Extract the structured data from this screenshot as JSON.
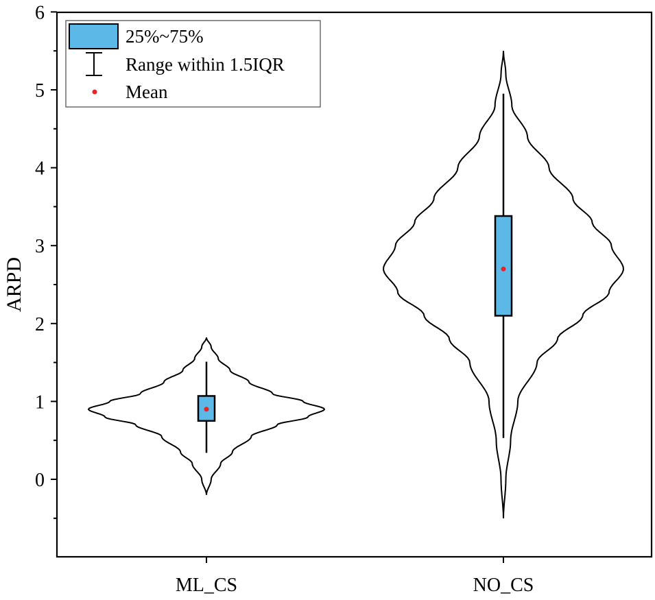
{
  "chart_data": {
    "type": "violin",
    "title": "",
    "xlabel": "",
    "ylabel": "ARPD",
    "ylim": [
      -0.8,
      6
    ],
    "yticks": [
      0,
      1,
      2,
      3,
      4,
      5,
      6
    ],
    "yticks_minor": [
      -0.5,
      0.5,
      1.5,
      2.5,
      3.5,
      4.5,
      5.5
    ],
    "categories": [
      "ML_CS",
      "NO_CS"
    ],
    "series": [
      {
        "name": "ML_CS",
        "q1": 0.75,
        "q3": 1.07,
        "mean": 0.9,
        "whisker_low": 0.34,
        "whisker_high": 1.51,
        "density_min": -0.2,
        "density_max": 1.82,
        "density_y": [
          -0.2,
          0.0,
          0.2,
          0.35,
          0.55,
          0.7,
          0.8,
          0.9,
          1.0,
          1.1,
          1.25,
          1.4,
          1.55,
          1.7,
          1.82
        ],
        "density_w": [
          0.0,
          0.04,
          0.12,
          0.22,
          0.38,
          0.6,
          0.86,
          1.0,
          0.82,
          0.56,
          0.36,
          0.2,
          0.1,
          0.04,
          0.0
        ]
      },
      {
        "name": "NO_CS",
        "q1": 2.1,
        "q3": 3.38,
        "mean": 2.7,
        "whisker_low": 0.53,
        "whisker_high": 4.95,
        "density_min": -0.5,
        "density_max": 5.5,
        "density_y": [
          -0.5,
          0.0,
          0.5,
          1.0,
          1.5,
          1.8,
          2.1,
          2.4,
          2.7,
          3.0,
          3.3,
          3.6,
          4.0,
          4.4,
          4.8,
          5.2,
          5.5
        ],
        "density_w": [
          0.0,
          0.02,
          0.06,
          0.12,
          0.28,
          0.45,
          0.66,
          0.88,
          1.0,
          0.9,
          0.74,
          0.58,
          0.38,
          0.2,
          0.07,
          0.02,
          0.0
        ]
      }
    ],
    "legend": {
      "position": "top-left",
      "entries": [
        {
          "label": "25%~75%",
          "kind": "box"
        },
        {
          "label": "Range within 1.5IQR",
          "kind": "whisker"
        },
        {
          "label": "Mean",
          "kind": "mean"
        }
      ]
    },
    "colors": {
      "box": "#5cb8e6",
      "mean": "#e8232a",
      "line": "#000000"
    }
  }
}
